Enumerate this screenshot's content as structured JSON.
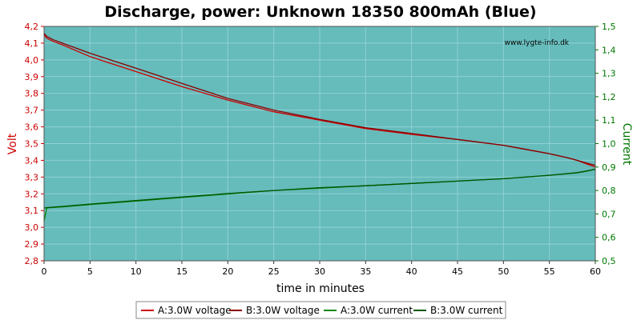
{
  "colors": {
    "plot_background": "#66bbbb",
    "grid": "#8fd2d2",
    "left_axis": "#cc0000",
    "right_axis": "#007700",
    "voltage_line": "#cc0000",
    "voltage_line_dark": "#880000",
    "current_line": "#008800",
    "current_line_dark": "#005500"
  },
  "chart_data": {
    "type": "line",
    "title": "Discharge, power: Unknown 18350 800mAh (Blue)",
    "watermark": "www.lygte-info.dk",
    "xlabel": "time in minutes",
    "ylabel_left": "Volt",
    "ylabel_right": "Current",
    "xlim": [
      0,
      60
    ],
    "ylim_left": [
      2.8,
      4.2
    ],
    "ylim_right": [
      0.5,
      1.5
    ],
    "grid": true,
    "legend_position": "bottom",
    "x_ticks": [
      "0",
      "5",
      "10",
      "15",
      "20",
      "25",
      "30",
      "35",
      "40",
      "45",
      "50",
      "55",
      "60"
    ],
    "y_left_ticks": [
      "2,8",
      "2,9",
      "3,0",
      "3,1",
      "3,2",
      "3,3",
      "3,4",
      "3,5",
      "3,6",
      "3,7",
      "3,8",
      "3,9",
      "4,0",
      "4,1",
      "4,2"
    ],
    "y_right_ticks": [
      "0,5",
      "0,6",
      "0,7",
      "0,8",
      "0,9",
      "1,0",
      "1,1",
      "1,2",
      "1,3",
      "1,4",
      "1,5"
    ],
    "series": [
      {
        "name": "A:3.0W voltage",
        "axis": "left",
        "color": "#cc0000",
        "x": [
          0,
          0.3,
          1,
          2,
          5,
          10,
          15,
          20,
          25,
          30,
          35,
          40,
          45,
          50,
          52,
          55,
          57,
          58,
          59,
          60
        ],
        "y": [
          4.15,
          4.13,
          4.11,
          4.09,
          4.02,
          3.93,
          3.84,
          3.76,
          3.69,
          3.64,
          3.59,
          3.555,
          3.525,
          3.49,
          3.47,
          3.44,
          3.415,
          3.4,
          3.38,
          3.36
        ]
      },
      {
        "name": "B:3.0W voltage",
        "axis": "left",
        "color": "#880000",
        "x": [
          0,
          0.3,
          1,
          2,
          5,
          10,
          15,
          20,
          25,
          30,
          35,
          40,
          45,
          50,
          52,
          55,
          57,
          58,
          59,
          60
        ],
        "y": [
          4.16,
          4.14,
          4.12,
          4.1,
          4.04,
          3.95,
          3.86,
          3.77,
          3.7,
          3.645,
          3.595,
          3.56,
          3.525,
          3.49,
          3.47,
          3.44,
          3.415,
          3.4,
          3.385,
          3.37
        ]
      },
      {
        "name": "A:3.0W current",
        "axis": "right",
        "color": "#008800",
        "x": [
          0,
          0.3,
          2,
          5,
          10,
          15,
          20,
          25,
          30,
          35,
          40,
          45,
          50,
          55,
          58,
          59,
          60
        ],
        "y": [
          0.67,
          0.726,
          0.73,
          0.74,
          0.755,
          0.77,
          0.785,
          0.8,
          0.81,
          0.82,
          0.83,
          0.84,
          0.85,
          0.865,
          0.875,
          0.882,
          0.89
        ]
      },
      {
        "name": "B:3.0W current",
        "axis": "right",
        "color": "#005500",
        "x": [
          0,
          0.3,
          2,
          5,
          10,
          15,
          20,
          25,
          30,
          35,
          40,
          45,
          50,
          55,
          58,
          59,
          60
        ],
        "y": [
          0.725,
          0.727,
          0.732,
          0.742,
          0.757,
          0.772,
          0.787,
          0.8,
          0.812,
          0.82,
          0.83,
          0.84,
          0.85,
          0.865,
          0.876,
          0.883,
          0.891
        ]
      }
    ]
  }
}
